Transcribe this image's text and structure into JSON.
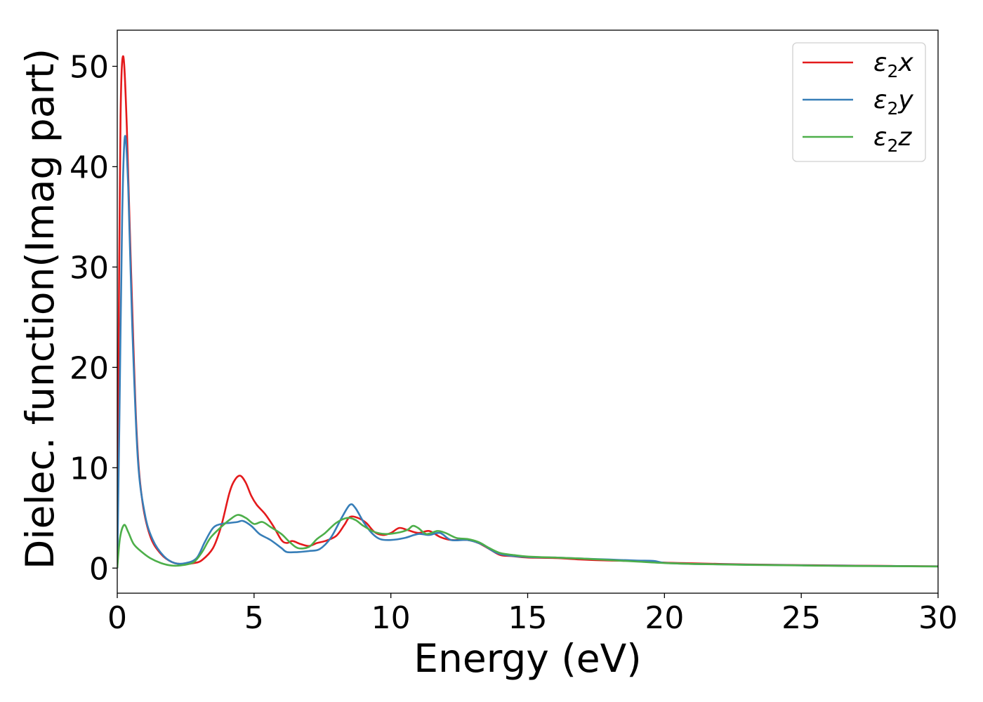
{
  "chart_data": {
    "type": "line",
    "title": "",
    "xlabel": "Energy (eV)",
    "ylabel": "Dielec. function(Imag part)",
    "xlim": [
      0,
      30
    ],
    "ylim": [
      -2.5,
      53.6
    ],
    "xticks": [
      0,
      5,
      10,
      15,
      20,
      25,
      30
    ],
    "yticks": [
      0,
      10,
      20,
      30,
      40,
      50
    ],
    "grid": false,
    "legend_position": "top-right",
    "series": [
      {
        "name": "ε₂x",
        "legend": {
          "base": "ε",
          "sub": "2",
          "suffix": "x"
        },
        "color": "#e41a1c",
        "points": [
          [
            0,
            0
          ],
          [
            0.05,
            22
          ],
          [
            0.12,
            45
          ],
          [
            0.22,
            51
          ],
          [
            0.35,
            44
          ],
          [
            0.5,
            30
          ],
          [
            0.7,
            14
          ],
          [
            0.9,
            7
          ],
          [
            1.2,
            3.2
          ],
          [
            1.6,
            1.4
          ],
          [
            2.0,
            0.6
          ],
          [
            2.4,
            0.4
          ],
          [
            2.8,
            0.5
          ],
          [
            3.1,
            0.8
          ],
          [
            3.5,
            2.0
          ],
          [
            3.8,
            4.2
          ],
          [
            4.1,
            7.5
          ],
          [
            4.3,
            8.8
          ],
          [
            4.5,
            9.2
          ],
          [
            4.7,
            8.5
          ],
          [
            4.9,
            7.2
          ],
          [
            5.1,
            6.3
          ],
          [
            5.4,
            5.4
          ],
          [
            5.7,
            4.2
          ],
          [
            6.0,
            2.8
          ],
          [
            6.2,
            2.5
          ],
          [
            6.4,
            2.7
          ],
          [
            6.7,
            2.4
          ],
          [
            7.0,
            2.2
          ],
          [
            7.3,
            2.5
          ],
          [
            7.6,
            2.7
          ],
          [
            8.0,
            3.2
          ],
          [
            8.3,
            4.3
          ],
          [
            8.5,
            5.1
          ],
          [
            8.8,
            5.0
          ],
          [
            9.1,
            4.5
          ],
          [
            9.4,
            3.6
          ],
          [
            9.7,
            3.3
          ],
          [
            10.0,
            3.5
          ],
          [
            10.3,
            4.0
          ],
          [
            10.6,
            3.8
          ],
          [
            11.0,
            3.5
          ],
          [
            11.4,
            3.7
          ],
          [
            11.8,
            3.1
          ],
          [
            12.2,
            2.8
          ],
          [
            12.8,
            2.8
          ],
          [
            13.2,
            2.5
          ],
          [
            13.6,
            1.9
          ],
          [
            14.0,
            1.3
          ],
          [
            14.4,
            1.2
          ],
          [
            15.0,
            1.05
          ],
          [
            16.0,
            1.0
          ],
          [
            17.0,
            0.85
          ],
          [
            18.0,
            0.75
          ],
          [
            19.0,
            0.7
          ],
          [
            20.0,
            0.55
          ],
          [
            21.0,
            0.48
          ],
          [
            22.0,
            0.42
          ],
          [
            23.0,
            0.37
          ],
          [
            24.0,
            0.33
          ],
          [
            25.0,
            0.3
          ],
          [
            26.0,
            0.27
          ],
          [
            27.0,
            0.24
          ],
          [
            28.0,
            0.22
          ],
          [
            29.0,
            0.2
          ],
          [
            30.0,
            0.18
          ]
        ]
      },
      {
        "name": "ε₂y",
        "legend": {
          "base": "ε",
          "sub": "2",
          "suffix": "y"
        },
        "color": "#377eb8",
        "points": [
          [
            0,
            0
          ],
          [
            0.08,
            15
          ],
          [
            0.18,
            35
          ],
          [
            0.28,
            43
          ],
          [
            0.4,
            38
          ],
          [
            0.55,
            24
          ],
          [
            0.75,
            11
          ],
          [
            1.0,
            5.5
          ],
          [
            1.3,
            2.8
          ],
          [
            1.7,
            1.2
          ],
          [
            2.1,
            0.5
          ],
          [
            2.5,
            0.5
          ],
          [
            2.9,
            1.0
          ],
          [
            3.2,
            2.6
          ],
          [
            3.5,
            4.0
          ],
          [
            3.8,
            4.4
          ],
          [
            4.1,
            4.5
          ],
          [
            4.4,
            4.6
          ],
          [
            4.6,
            4.7
          ],
          [
            4.9,
            4.2
          ],
          [
            5.2,
            3.4
          ],
          [
            5.6,
            2.8
          ],
          [
            6.0,
            2.0
          ],
          [
            6.2,
            1.6
          ],
          [
            6.6,
            1.6
          ],
          [
            7.0,
            1.7
          ],
          [
            7.4,
            1.9
          ],
          [
            7.8,
            3.0
          ],
          [
            8.2,
            5.0
          ],
          [
            8.5,
            6.3
          ],
          [
            8.7,
            6.0
          ],
          [
            9.0,
            4.6
          ],
          [
            9.3,
            3.5
          ],
          [
            9.6,
            2.9
          ],
          [
            10.0,
            2.8
          ],
          [
            10.5,
            3.0
          ],
          [
            11.0,
            3.4
          ],
          [
            11.4,
            3.3
          ],
          [
            11.8,
            3.5
          ],
          [
            12.2,
            2.8
          ],
          [
            12.8,
            2.8
          ],
          [
            13.3,
            2.4
          ],
          [
            13.8,
            1.6
          ],
          [
            14.2,
            1.3
          ],
          [
            15.0,
            1.1
          ],
          [
            16.0,
            1.05
          ],
          [
            17.0,
            0.95
          ],
          [
            18.0,
            0.85
          ],
          [
            19.0,
            0.75
          ],
          [
            19.6,
            0.72
          ],
          [
            20.0,
            0.52
          ],
          [
            21.0,
            0.42
          ],
          [
            22.0,
            0.38
          ],
          [
            23.0,
            0.34
          ],
          [
            24.0,
            0.31
          ],
          [
            25.0,
            0.28
          ],
          [
            26.0,
            0.25
          ],
          [
            27.0,
            0.23
          ],
          [
            28.0,
            0.21
          ],
          [
            29.0,
            0.19
          ],
          [
            30.0,
            0.17
          ]
        ]
      },
      {
        "name": "ε₂z",
        "legend": {
          "base": "ε",
          "sub": "2",
          "suffix": "z"
        },
        "color": "#4daf4a",
        "points": [
          [
            0,
            0
          ],
          [
            0.1,
            3.0
          ],
          [
            0.25,
            4.3
          ],
          [
            0.4,
            3.6
          ],
          [
            0.6,
            2.4
          ],
          [
            0.9,
            1.6
          ],
          [
            1.2,
            1.0
          ],
          [
            1.6,
            0.5
          ],
          [
            2.0,
            0.25
          ],
          [
            2.4,
            0.3
          ],
          [
            2.8,
            0.6
          ],
          [
            3.1,
            1.6
          ],
          [
            3.4,
            3.0
          ],
          [
            3.8,
            4.1
          ],
          [
            4.1,
            4.8
          ],
          [
            4.4,
            5.3
          ],
          [
            4.7,
            5.0
          ],
          [
            5.0,
            4.4
          ],
          [
            5.3,
            4.6
          ],
          [
            5.6,
            4.1
          ],
          [
            6.0,
            3.4
          ],
          [
            6.3,
            2.6
          ],
          [
            6.6,
            2.0
          ],
          [
            7.0,
            2.1
          ],
          [
            7.3,
            2.9
          ],
          [
            7.6,
            3.5
          ],
          [
            8.0,
            4.5
          ],
          [
            8.4,
            5.0
          ],
          [
            8.7,
            4.8
          ],
          [
            9.0,
            4.2
          ],
          [
            9.4,
            3.6
          ],
          [
            9.8,
            3.4
          ],
          [
            10.2,
            3.5
          ],
          [
            10.6,
            3.8
          ],
          [
            10.8,
            4.2
          ],
          [
            11.0,
            4.0
          ],
          [
            11.3,
            3.4
          ],
          [
            11.7,
            3.7
          ],
          [
            12.0,
            3.5
          ],
          [
            12.4,
            3.0
          ],
          [
            12.8,
            2.9
          ],
          [
            13.2,
            2.6
          ],
          [
            13.6,
            2.0
          ],
          [
            14.0,
            1.5
          ],
          [
            14.5,
            1.3
          ],
          [
            15.0,
            1.15
          ],
          [
            16.0,
            1.05
          ],
          [
            17.0,
            0.95
          ],
          [
            18.0,
            0.8
          ],
          [
            19.0,
            0.65
          ],
          [
            20.0,
            0.5
          ],
          [
            21.0,
            0.42
          ],
          [
            22.0,
            0.37
          ],
          [
            23.0,
            0.32
          ],
          [
            24.0,
            0.29
          ],
          [
            25.0,
            0.26
          ],
          [
            26.0,
            0.23
          ],
          [
            27.0,
            0.21
          ],
          [
            28.0,
            0.19
          ],
          [
            29.0,
            0.18
          ],
          [
            30.0,
            0.16
          ]
        ]
      }
    ]
  }
}
